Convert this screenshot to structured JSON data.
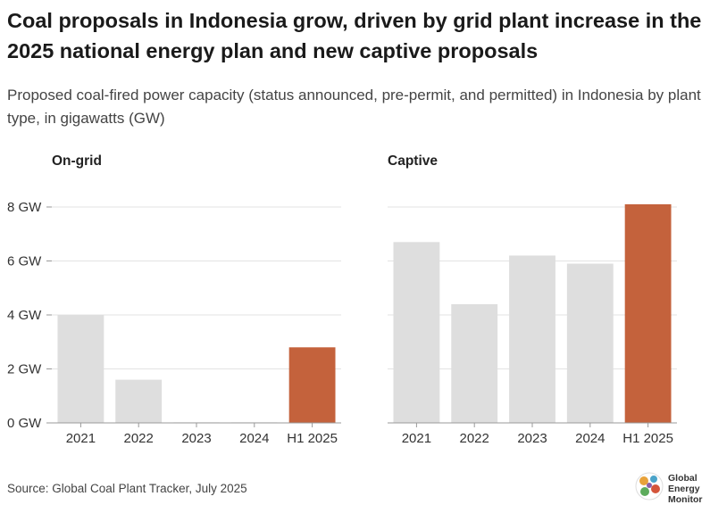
{
  "title": "Coal proposals in Indonesia grow, driven by grid plant increase in the 2025 national energy plan and new captive proposals",
  "subtitle": "Proposed coal-fired power capacity (status announced, pre-permit, and permitted) in Indonesia by plant type, in gigawatts (GW)",
  "source": "Source: Global Coal Plant Tracker, July 2025",
  "logo": {
    "line1": "Global",
    "line2": "Energy",
    "line3": "Monitor"
  },
  "colors": {
    "base_bar": "#dedede",
    "highlight_bar": "#c4623c",
    "gridline": "#e3e3e3",
    "axis": "#999999"
  },
  "chart_data": [
    {
      "type": "bar",
      "panel_title": "On-grid",
      "categories": [
        "2021",
        "2022",
        "2023",
        "2024",
        "H1 2025"
      ],
      "values": [
        4.0,
        1.6,
        0.02,
        0.02,
        2.8
      ],
      "highlight_index": 4,
      "ylim": [
        0,
        8
      ],
      "yticks": [
        0,
        2,
        4,
        6,
        8
      ],
      "ytick_labels": [
        "0 GW",
        "2 GW",
        "4 GW",
        "6 GW",
        "8 GW"
      ],
      "grid": true
    },
    {
      "type": "bar",
      "panel_title": "Captive",
      "categories": [
        "2021",
        "2022",
        "2023",
        "2024",
        "H1 2025"
      ],
      "values": [
        6.7,
        4.4,
        6.2,
        5.9,
        8.1
      ],
      "highlight_index": 4,
      "ylim": [
        0,
        8
      ],
      "yticks": [
        0,
        2,
        4,
        6,
        8
      ],
      "grid": true
    }
  ]
}
